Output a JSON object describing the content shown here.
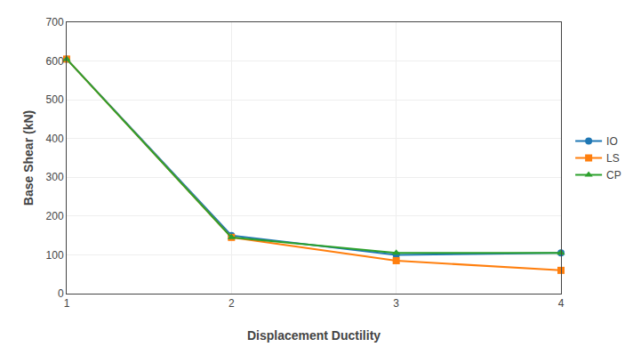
{
  "chart_data": {
    "type": "line",
    "x": [
      1,
      2,
      3,
      4
    ],
    "series": [
      {
        "name": "IO",
        "values": [
          605,
          150,
          100,
          105
        ],
        "marker": "circle"
      },
      {
        "name": "LS",
        "values": [
          605,
          145,
          85,
          60
        ],
        "marker": "square"
      },
      {
        "name": "CP",
        "values": [
          605,
          145,
          105,
          105
        ],
        "marker": "triangle"
      }
    ],
    "xlabel": "Displacement Ductility",
    "ylabel": "Base Shear (kN)",
    "xlim": [
      1,
      4
    ],
    "xticks": [
      1,
      2,
      3,
      4
    ],
    "ylim": [
      0,
      700
    ],
    "yticks": [
      0,
      100,
      200,
      300,
      400,
      500,
      600,
      700
    ],
    "grid": true,
    "legend": "right"
  }
}
